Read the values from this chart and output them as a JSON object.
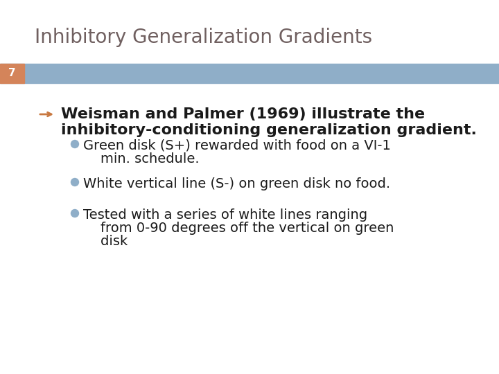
{
  "title": "Inhibitory Generalization Gradients",
  "title_color": "#706060",
  "title_fontsize": 20,
  "slide_number": "7",
  "slide_number_bg": "#d4845a",
  "slide_number_color": "#ffffff",
  "slide_number_fontsize": 11,
  "header_bar_color": "#8faec8",
  "bg_color": "#ffffff",
  "arrow_color": "#c87840",
  "bullet_color": "#8faec8",
  "main_text_color": "#1a1a1a",
  "main_text_fontsize": 16,
  "bullet_fontsize": 14,
  "bullet_text_color": "#1a1a1a",
  "main_line1": "Weisman and Palmer (1969) illustrate the",
  "main_line2": "inhibitory-conditioning generalization gradient.",
  "bullet1_line1": "Green disk (S+) rewarded with food on a VI-1",
  "bullet1_line2": "    min. schedule.",
  "bullet2": "White vertical line (S-) on green disk no food.",
  "bullet3_line1": "Tested with a series of white lines ranging",
  "bullet3_line2": "    from 0-90 degrees off the vertical on green",
  "bullet3_line3": "    disk"
}
